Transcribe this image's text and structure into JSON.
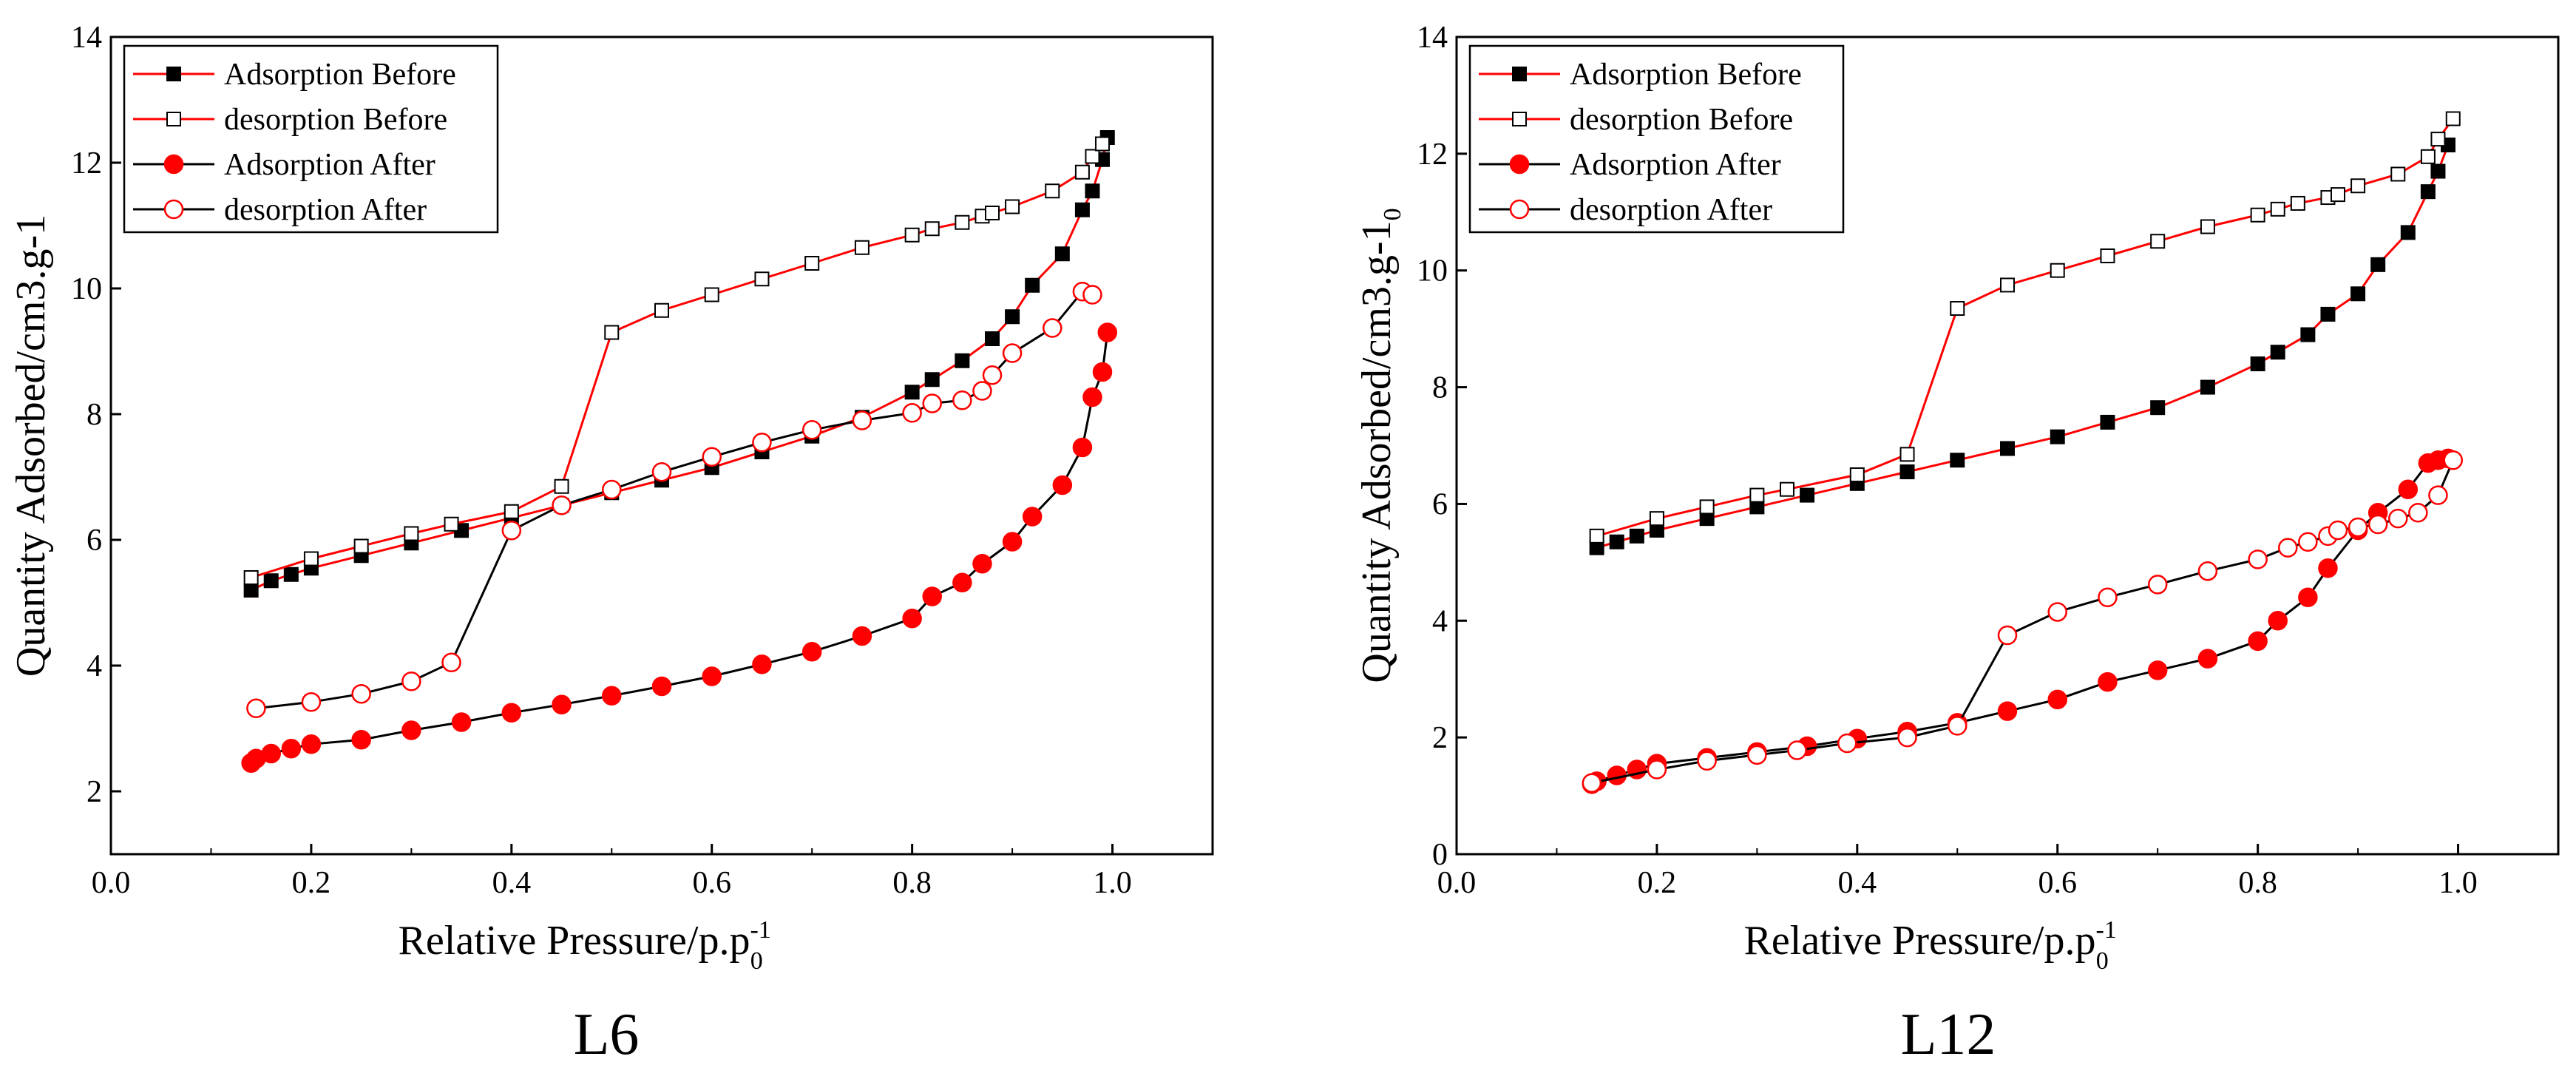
{
  "colors": {
    "red": "#ff0000",
    "black": "#000000"
  },
  "panels": [
    {
      "caption": "L6"
    },
    {
      "caption": "L12"
    }
  ],
  "chart_data": [
    {
      "type": "line",
      "caption": "L6",
      "xlabel": "Relative Pressure/p.p",
      "xlabel_sup": "-1",
      "xlabel_sub": "0",
      "ylabel": "Quantity Adsorbed/cm3.g-1",
      "ylabel_sub": "",
      "xlim": [
        0.0,
        1.1
      ],
      "ylim": [
        1,
        14
      ],
      "xticks": [
        "0.0",
        "0.2",
        "0.4",
        "0.6",
        "0.8",
        "1.0"
      ],
      "yticks": [
        "2",
        "4",
        "6",
        "8",
        "10",
        "12",
        "14"
      ],
      "legend_position": "top-left",
      "series": [
        {
          "name": "Adsorption Before",
          "line_color": "#ff0000",
          "marker": "square",
          "marker_fill": "#000000",
          "marker_stroke": "#000000",
          "x": [
            0.14,
            0.16,
            0.18,
            0.2,
            0.25,
            0.3,
            0.35,
            0.4,
            0.45,
            0.5,
            0.55,
            0.6,
            0.65,
            0.7,
            0.75,
            0.8,
            0.82,
            0.85,
            0.88,
            0.9,
            0.92,
            0.95,
            0.97,
            0.98,
            0.99,
            0.995
          ],
          "y": [
            5.2,
            5.35,
            5.45,
            5.55,
            5.75,
            5.95,
            6.15,
            6.35,
            6.55,
            6.75,
            6.95,
            7.15,
            7.4,
            7.65,
            7.95,
            8.35,
            8.55,
            8.85,
            9.2,
            9.55,
            10.05,
            10.55,
            11.25,
            11.55,
            12.05,
            12.4
          ]
        },
        {
          "name": "desorption Before",
          "line_color": "#ff0000",
          "marker": "square",
          "marker_fill": "#ffffff",
          "marker_stroke": "#000000",
          "x": [
            0.14,
            0.2,
            0.25,
            0.3,
            0.34,
            0.4,
            0.45,
            0.5,
            0.55,
            0.6,
            0.65,
            0.7,
            0.75,
            0.8,
            0.82,
            0.85,
            0.87,
            0.88,
            0.9,
            0.94,
            0.97,
            0.98,
            0.99
          ],
          "y": [
            5.4,
            5.7,
            5.9,
            6.1,
            6.25,
            6.45,
            6.85,
            9.3,
            9.65,
            9.9,
            10.15,
            10.4,
            10.65,
            10.85,
            10.95,
            11.05,
            11.15,
            11.2,
            11.3,
            11.55,
            11.85,
            12.1,
            12.3
          ]
        },
        {
          "name": "Adsorption After",
          "line_color": "#000000",
          "marker": "circle",
          "marker_fill": "#ff0000",
          "marker_stroke": "#ff0000",
          "x": [
            0.14,
            0.145,
            0.16,
            0.18,
            0.2,
            0.25,
            0.3,
            0.35,
            0.4,
            0.45,
            0.5,
            0.55,
            0.6,
            0.65,
            0.7,
            0.75,
            0.8,
            0.82,
            0.85,
            0.87,
            0.9,
            0.92,
            0.95,
            0.97,
            0.98,
            0.99,
            0.995
          ],
          "y": [
            2.45,
            2.52,
            2.6,
            2.68,
            2.75,
            2.82,
            2.97,
            3.1,
            3.25,
            3.38,
            3.52,
            3.67,
            3.83,
            4.02,
            4.22,
            4.47,
            4.75,
            5.1,
            5.32,
            5.62,
            5.97,
            6.37,
            6.87,
            7.47,
            8.27,
            8.67,
            9.3
          ]
        },
        {
          "name": "desorption After",
          "line_color": "#000000",
          "marker": "circle",
          "marker_fill": "#ffffff",
          "marker_stroke": "#ff0000",
          "x": [
            0.145,
            0.2,
            0.25,
            0.3,
            0.34,
            0.4,
            0.45,
            0.5,
            0.55,
            0.6,
            0.65,
            0.7,
            0.75,
            0.8,
            0.82,
            0.85,
            0.87,
            0.88,
            0.9,
            0.94,
            0.97,
            0.98
          ],
          "y": [
            3.32,
            3.42,
            3.55,
            3.75,
            4.05,
            6.15,
            6.55,
            6.8,
            7.08,
            7.32,
            7.55,
            7.75,
            7.9,
            8.02,
            8.17,
            8.22,
            8.37,
            8.62,
            8.97,
            9.37,
            9.95,
            9.9
          ]
        }
      ]
    },
    {
      "type": "line",
      "caption": "L12",
      "xlabel": "Relative Pressure/p.p",
      "xlabel_sup": "-1",
      "xlabel_sub": "0",
      "ylabel": "Quantity Adsorbed/cm3.g-1",
      "ylabel_sub": "0",
      "xlim": [
        0.0,
        1.1
      ],
      "ylim": [
        0,
        14
      ],
      "xticks": [
        "0.0",
        "0.2",
        "0.4",
        "0.6",
        "0.8",
        "1.0"
      ],
      "yticks": [
        "0",
        "2",
        "4",
        "6",
        "8",
        "10",
        "12",
        "14"
      ],
      "legend_position": "top-left",
      "series": [
        {
          "name": "Adsorption Before",
          "line_color": "#ff0000",
          "marker": "square",
          "marker_fill": "#000000",
          "marker_stroke": "#000000",
          "x": [
            0.14,
            0.16,
            0.18,
            0.2,
            0.25,
            0.3,
            0.35,
            0.4,
            0.45,
            0.5,
            0.55,
            0.6,
            0.65,
            0.7,
            0.75,
            0.8,
            0.82,
            0.85,
            0.87,
            0.9,
            0.92,
            0.95,
            0.97,
            0.98,
            0.99
          ],
          "y": [
            5.25,
            5.35,
            5.45,
            5.55,
            5.75,
            5.95,
            6.15,
            6.35,
            6.55,
            6.75,
            6.95,
            7.15,
            7.4,
            7.65,
            8.0,
            8.4,
            8.6,
            8.9,
            9.25,
            9.6,
            10.1,
            10.65,
            11.35,
            11.7,
            12.15
          ]
        },
        {
          "name": "desorption Before",
          "line_color": "#ff0000",
          "marker": "square",
          "marker_fill": "#ffffff",
          "marker_stroke": "#000000",
          "x": [
            0.14,
            0.2,
            0.25,
            0.3,
            0.33,
            0.4,
            0.45,
            0.5,
            0.55,
            0.6,
            0.65,
            0.7,
            0.75,
            0.8,
            0.82,
            0.84,
            0.87,
            0.88,
            0.9,
            0.94,
            0.97,
            0.98,
            0.995
          ],
          "y": [
            5.45,
            5.75,
            5.95,
            6.15,
            6.25,
            6.5,
            6.85,
            9.35,
            9.75,
            10.0,
            10.25,
            10.5,
            10.75,
            10.95,
            11.05,
            11.15,
            11.25,
            11.3,
            11.45,
            11.65,
            11.95,
            12.25,
            12.6
          ]
        },
        {
          "name": "Adsorption After",
          "line_color": "#000000",
          "marker": "circle",
          "marker_fill": "#ff0000",
          "marker_stroke": "#ff0000",
          "x": [
            0.135,
            0.14,
            0.16,
            0.18,
            0.2,
            0.25,
            0.3,
            0.35,
            0.4,
            0.45,
            0.5,
            0.55,
            0.6,
            0.65,
            0.7,
            0.75,
            0.8,
            0.82,
            0.85,
            0.87,
            0.9,
            0.92,
            0.95,
            0.97,
            0.98,
            0.99
          ],
          "y": [
            1.2,
            1.25,
            1.35,
            1.45,
            1.55,
            1.65,
            1.75,
            1.85,
            1.98,
            2.1,
            2.25,
            2.45,
            2.65,
            2.95,
            3.15,
            3.35,
            3.65,
            4.0,
            4.4,
            4.9,
            5.55,
            5.85,
            6.25,
            6.7,
            6.75,
            6.78
          ]
        },
        {
          "name": "desorption After",
          "line_color": "#000000",
          "marker": "circle",
          "marker_fill": "#ffffff",
          "marker_stroke": "#ff0000",
          "x": [
            0.135,
            0.2,
            0.25,
            0.3,
            0.34,
            0.39,
            0.45,
            0.5,
            0.55,
            0.6,
            0.65,
            0.7,
            0.75,
            0.8,
            0.83,
            0.85,
            0.87,
            0.88,
            0.9,
            0.92,
            0.94,
            0.96,
            0.98,
            0.995
          ],
          "y": [
            1.22,
            1.45,
            1.6,
            1.7,
            1.78,
            1.9,
            2.0,
            2.2,
            3.75,
            4.15,
            4.4,
            4.62,
            4.85,
            5.05,
            5.25,
            5.35,
            5.45,
            5.55,
            5.6,
            5.65,
            5.75,
            5.85,
            6.15,
            6.75
          ]
        }
      ]
    }
  ]
}
